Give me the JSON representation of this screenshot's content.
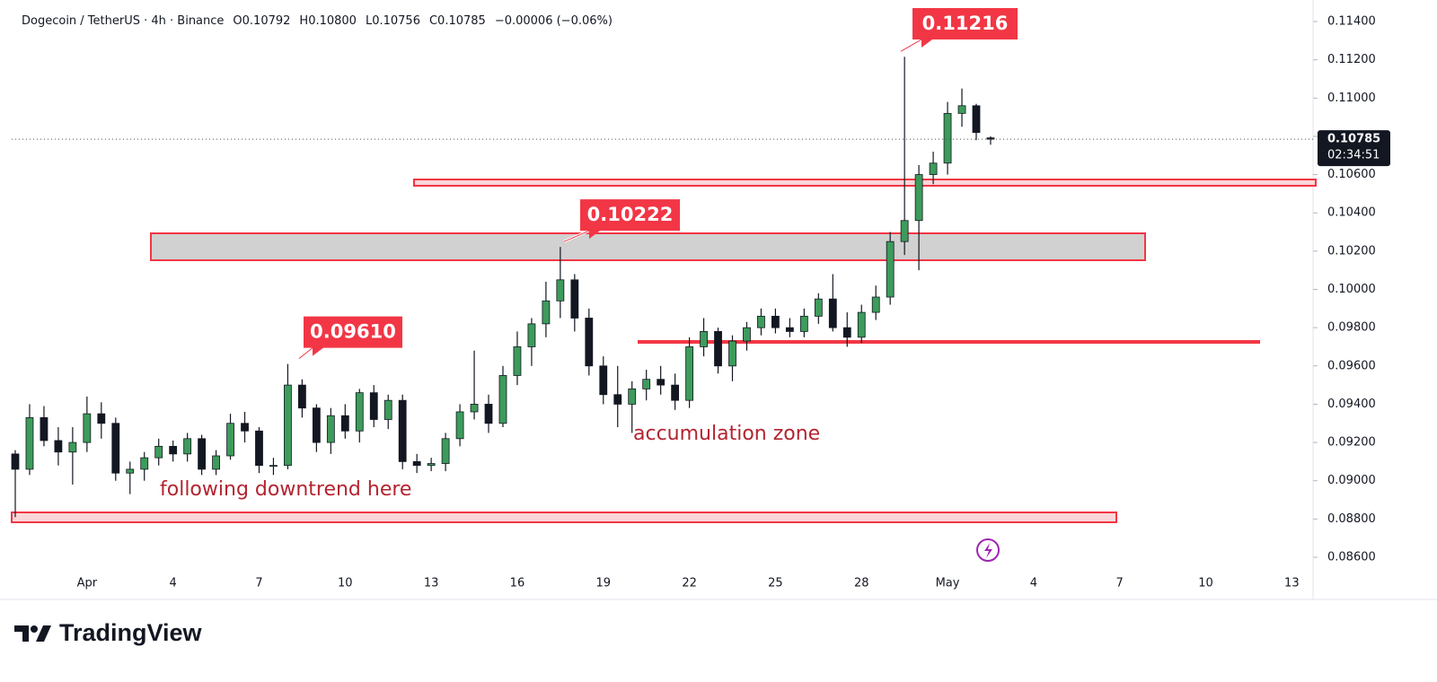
{
  "chart_data": {
    "type": "candlestick",
    "title": "Dogecoin / TetherUS · 4h · Binance",
    "ohlc_readout": [
      "O0.10792",
      "H0.10800",
      "L0.10756",
      "C0.10785",
      "−0.00006 (−0.06%)"
    ],
    "categories": [
      null,
      null,
      null,
      null,
      null,
      "Apr",
      null,
      null,
      null,
      null,
      null,
      "4",
      null,
      null,
      null,
      null,
      null,
      "7",
      null,
      null,
      null,
      null,
      null,
      "10",
      null,
      null,
      null,
      null,
      null,
      "13",
      null,
      null,
      null,
      null,
      null,
      "16",
      null,
      null,
      null,
      null,
      null,
      "19",
      null,
      null,
      null,
      null,
      null,
      "22",
      null,
      null,
      null,
      null,
      null,
      "25",
      null,
      null,
      null,
      null,
      null,
      "28",
      null,
      null,
      null,
      null,
      null,
      "May",
      null,
      null,
      null,
      null,
      null,
      "4",
      null,
      null,
      null,
      null,
      null,
      "7",
      null,
      null,
      null,
      null,
      null,
      "10",
      null,
      null,
      null,
      null,
      null,
      "13"
    ],
    "open": [
      0.0914,
      0.0906,
      0.0933,
      0.0921,
      0.0915,
      0.092,
      0.0935,
      0.093,
      0.0904,
      0.0906,
      0.0912,
      0.0918,
      0.0914,
      0.0922,
      0.0906,
      0.0913,
      0.093,
      0.0926,
      0.0908,
      0.0908,
      0.095,
      0.0938,
      0.092,
      0.0934,
      0.0926,
      0.0946,
      0.0932,
      0.0942,
      0.091,
      0.0908,
      0.0909,
      0.0922,
      0.0936,
      0.094,
      0.093,
      0.0955,
      0.097,
      0.0982,
      0.0994,
      0.1005,
      0.0985,
      0.096,
      0.0945,
      0.094,
      0.0948,
      0.0953,
      0.095,
      0.0942,
      0.097,
      0.0978,
      0.096,
      0.0973,
      0.098,
      0.0986,
      0.098,
      0.0978,
      0.0986,
      0.0995,
      0.098,
      0.0975,
      0.0988,
      0.0996,
      0.1025,
      0.1036,
      0.106,
      0.1066,
      0.1092,
      0.1096,
      0.10792,
      null,
      null,
      null,
      null,
      null,
      null,
      null,
      null,
      null,
      null,
      null,
      null,
      null,
      null,
      null,
      null,
      null,
      null,
      null,
      null,
      null
    ],
    "high": [
      0.0916,
      0.094,
      0.0939,
      0.0928,
      0.0928,
      0.0944,
      0.0941,
      0.0933,
      0.091,
      0.0915,
      0.0922,
      0.0921,
      0.0925,
      0.0924,
      0.0916,
      0.0935,
      0.0936,
      0.0928,
      0.0912,
      0.0961,
      0.0953,
      0.094,
      0.0938,
      0.094,
      0.0948,
      0.095,
      0.0945,
      0.0945,
      0.0914,
      0.0912,
      0.0925,
      0.094,
      0.0968,
      0.0945,
      0.096,
      0.0978,
      0.0985,
      0.1004,
      0.10222,
      0.1008,
      0.099,
      0.0965,
      0.096,
      0.0952,
      0.0958,
      0.096,
      0.0956,
      0.0975,
      0.0985,
      0.098,
      0.0976,
      0.0983,
      0.099,
      0.099,
      0.0985,
      0.099,
      0.0998,
      0.1008,
      0.0988,
      0.0992,
      0.1002,
      0.103,
      0.11216,
      0.1065,
      0.1072,
      0.1098,
      0.1105,
      0.1097,
      0.108,
      null,
      null,
      null,
      null,
      null,
      null,
      null,
      null,
      null,
      null,
      null,
      null,
      null,
      null,
      null,
      null,
      null,
      null,
      null,
      null,
      null
    ],
    "low": [
      0.0881,
      0.0903,
      0.0918,
      0.0908,
      0.0898,
      0.0915,
      0.0922,
      0.09,
      0.0893,
      0.09,
      0.0908,
      0.091,
      0.091,
      0.0903,
      0.0903,
      0.0911,
      0.092,
      0.0904,
      0.0903,
      0.0906,
      0.0933,
      0.0915,
      0.0914,
      0.0922,
      0.092,
      0.0928,
      0.0927,
      0.0906,
      0.0904,
      0.0905,
      0.0905,
      0.0918,
      0.0932,
      0.0925,
      0.0928,
      0.095,
      0.096,
      0.0975,
      0.0985,
      0.0978,
      0.0955,
      0.094,
      0.0928,
      0.0925,
      0.0942,
      0.0945,
      0.0937,
      0.0938,
      0.0965,
      0.0956,
      0.0952,
      0.0968,
      0.0976,
      0.0977,
      0.0975,
      0.0975,
      0.0982,
      0.0978,
      0.097,
      0.0972,
      0.0984,
      0.0992,
      0.1018,
      0.101,
      0.1055,
      0.106,
      0.1085,
      0.1078,
      0.10756,
      null,
      null,
      null,
      null,
      null,
      null,
      null,
      null,
      null,
      null,
      null,
      null,
      null,
      null,
      null,
      null,
      null,
      null,
      null,
      null,
      null
    ],
    "close": [
      0.0906,
      0.0933,
      0.0921,
      0.0915,
      0.092,
      0.0935,
      0.093,
      0.0904,
      0.0906,
      0.0912,
      0.0918,
      0.0914,
      0.0922,
      0.0906,
      0.0913,
      0.093,
      0.0926,
      0.0908,
      0.0908,
      0.095,
      0.0938,
      0.092,
      0.0934,
      0.0926,
      0.0946,
      0.0932,
      0.0942,
      0.091,
      0.0908,
      0.0909,
      0.0922,
      0.0936,
      0.094,
      0.093,
      0.0955,
      0.097,
      0.0982,
      0.0994,
      0.1005,
      0.0985,
      0.096,
      0.0945,
      0.094,
      0.0948,
      0.0953,
      0.095,
      0.0942,
      0.097,
      0.0978,
      0.096,
      0.0973,
      0.098,
      0.0986,
      0.098,
      0.0978,
      0.0986,
      0.0995,
      0.098,
      0.0975,
      0.0988,
      0.0996,
      0.1025,
      0.1036,
      0.106,
      0.1066,
      0.1092,
      0.1096,
      0.1082,
      0.10785,
      null,
      null,
      null,
      null,
      null,
      null,
      null,
      null,
      null,
      null,
      null,
      null,
      null,
      null,
      null,
      null,
      null,
      null,
      null,
      null,
      null
    ],
    "up_color": "#3d9b5b",
    "down_color": "#131722",
    "ylim": [
      0.086,
      0.114
    ],
    "yticks": [
      {
        "value": 0.086,
        "label": "0.08600"
      },
      {
        "value": 0.088,
        "label": "0.08800"
      },
      {
        "value": 0.09,
        "label": "0.09000"
      },
      {
        "value": 0.092,
        "label": "0.09200"
      },
      {
        "value": 0.094,
        "label": "0.09400"
      },
      {
        "value": 0.096,
        "label": "0.09600"
      },
      {
        "value": 0.098,
        "label": "0.09800"
      },
      {
        "value": 0.1,
        "label": "0.10000"
      },
      {
        "value": 0.102,
        "label": "0.10200"
      },
      {
        "value": 0.104,
        "label": "0.10400"
      },
      {
        "value": 0.106,
        "label": "0.10600"
      },
      {
        "value": 0.108,
        "label": "0.10800"
      },
      {
        "value": 0.11,
        "label": "0.11000"
      },
      {
        "value": 0.112,
        "label": "0.11200"
      },
      {
        "value": 0.114,
        "label": "0.11400"
      }
    ],
    "grid": false,
    "last_price": 0.10785,
    "countdown": "02:34:51",
    "callouts": [
      {
        "value": 0.11216,
        "label": "0.11216"
      },
      {
        "value": 0.10222,
        "label": "0.10222"
      },
      {
        "value": 0.0961,
        "label": "0.09610"
      }
    ],
    "annotations": [
      "accumulation zone",
      "following downtrend here"
    ],
    "brand": "TradingView"
  }
}
